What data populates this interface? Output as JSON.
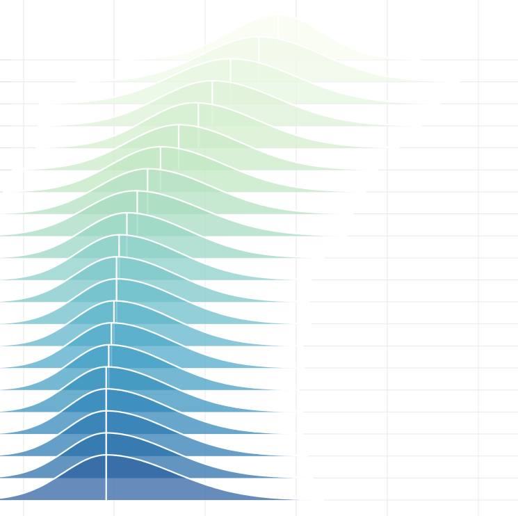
{
  "chart_data": {
    "type": "ridgeline",
    "title": "",
    "xlabel": "",
    "ylabel": "",
    "grid": true,
    "legend": "none",
    "x_range": [
      0,
      1
    ],
    "series": [
      {
        "mode": 0.537,
        "median": 0.537,
        "spread": 0.095,
        "skew": 0.9,
        "color": "#f7fcf0"
      },
      {
        "mode": 0.5,
        "median": 0.5,
        "spread": 0.11,
        "skew": 1.1,
        "color": "#eef8e8"
      },
      {
        "mode": 0.445,
        "median": 0.445,
        "spread": 0.115,
        "skew": 1.1,
        "color": "#e5f5df"
      },
      {
        "mode": 0.41,
        "median": 0.41,
        "spread": 0.105,
        "skew": 1.2,
        "color": "#dcf1d6"
      },
      {
        "mode": 0.375,
        "median": 0.383,
        "spread": 0.095,
        "skew": 1.3,
        "color": "#d3eecd"
      },
      {
        "mode": 0.345,
        "median": 0.345,
        "spread": 0.1,
        "skew": 1.2,
        "color": "#c9eac6"
      },
      {
        "mode": 0.31,
        "median": 0.31,
        "spread": 0.095,
        "skew": 1.3,
        "color": "#bfe6c0"
      },
      {
        "mode": 0.285,
        "median": 0.285,
        "spread": 0.095,
        "skew": 1.3,
        "color": "#b2e1bf"
      },
      {
        "mode": 0.26,
        "median": 0.265,
        "spread": 0.095,
        "skew": 1.35,
        "color": "#a5dbc1"
      },
      {
        "mode": 0.245,
        "median": 0.245,
        "spread": 0.085,
        "skew": 1.4,
        "color": "#97d5c4"
      },
      {
        "mode": 0.23,
        "median": 0.23,
        "spread": 0.08,
        "skew": 1.45,
        "color": "#88cec7"
      },
      {
        "mode": 0.225,
        "median": 0.225,
        "spread": 0.08,
        "skew": 1.45,
        "color": "#79c6c9"
      },
      {
        "mode": 0.225,
        "median": 0.225,
        "spread": 0.078,
        "skew": 1.5,
        "color": "#6abdca"
      },
      {
        "mode": 0.22,
        "median": 0.22,
        "spread": 0.076,
        "skew": 1.5,
        "color": "#5bb3ca"
      },
      {
        "mode": 0.215,
        "median": 0.215,
        "spread": 0.075,
        "skew": 1.55,
        "color": "#4ca8c7"
      },
      {
        "mode": 0.21,
        "median": 0.21,
        "spread": 0.074,
        "skew": 1.55,
        "color": "#3f9cc3"
      },
      {
        "mode": 0.205,
        "median": 0.205,
        "spread": 0.074,
        "skew": 1.6,
        "color": "#3590bd"
      },
      {
        "mode": 0.205,
        "median": 0.205,
        "spread": 0.074,
        "skew": 1.6,
        "color": "#2e84b7"
      },
      {
        "mode": 0.205,
        "median": 0.205,
        "spread": 0.076,
        "skew": 1.6,
        "color": "#2978b1"
      },
      {
        "mode": 0.205,
        "median": 0.205,
        "spread": 0.078,
        "skew": 1.6,
        "color": "#256da9"
      },
      {
        "mode": 0.205,
        "median": 0.205,
        "spread": 0.082,
        "skew": 1.6,
        "color": "#2a5fa0"
      }
    ]
  }
}
